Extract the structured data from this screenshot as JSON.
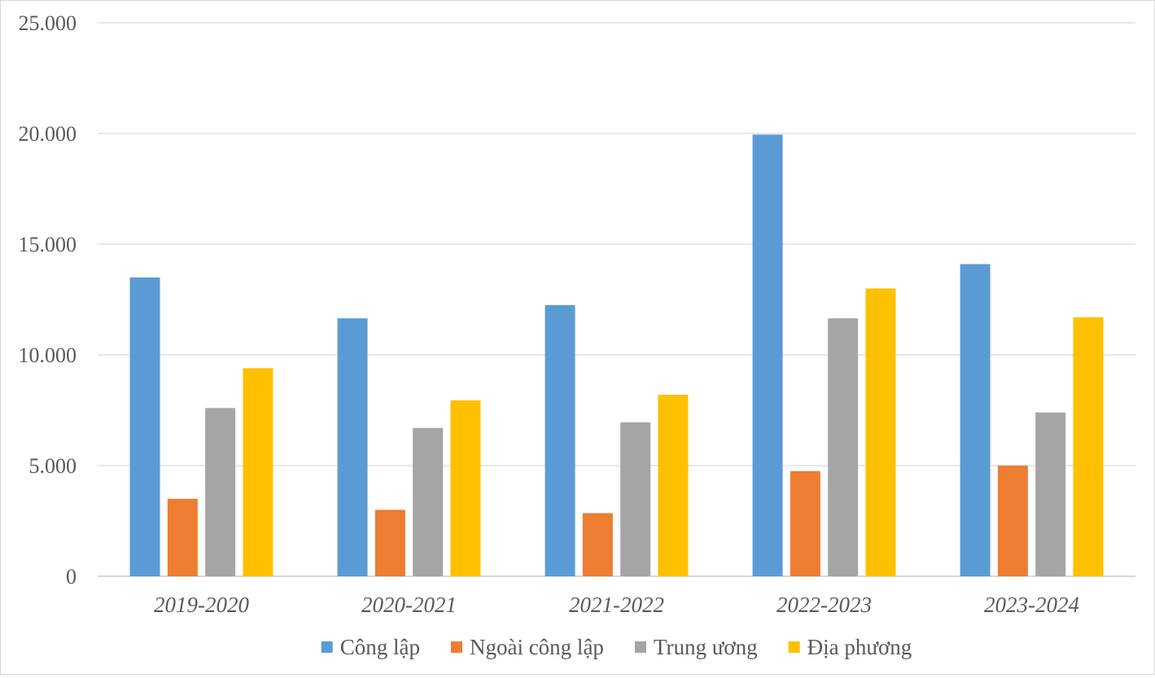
{
  "chart_data": {
    "type": "bar",
    "categories": [
      "2019-2020",
      "2020-2021",
      "2021-2022",
      "2022-2023",
      "2023-2024"
    ],
    "series": [
      {
        "name": "Công lập",
        "color": "#5B9BD5",
        "values": [
          13500,
          11650,
          12250,
          19950,
          14100
        ]
      },
      {
        "name": "Ngoài công lập",
        "color": "#ED7D31",
        "values": [
          3500,
          3000,
          2850,
          4750,
          5000
        ]
      },
      {
        "name": "Trung ương",
        "color": "#A5A5A5",
        "values": [
          7600,
          6700,
          6950,
          11650,
          7400
        ]
      },
      {
        "name": "Địa phương",
        "color": "#FFC000",
        "values": [
          9400,
          7950,
          8200,
          13000,
          11700
        ]
      }
    ],
    "ylim": [
      0,
      25000
    ],
    "yticks": [
      "0",
      "5.000",
      "10.000",
      "15.000",
      "20.000",
      "25.000"
    ],
    "grid": true,
    "legend_position": "bottom"
  }
}
